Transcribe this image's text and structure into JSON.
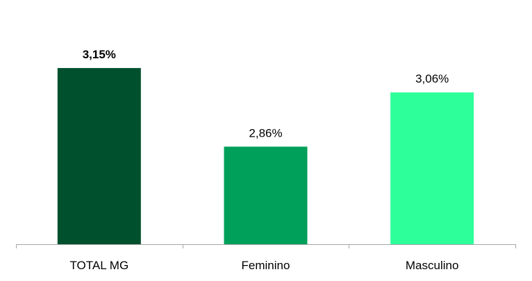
{
  "chart_data": {
    "type": "bar",
    "categories": [
      "TOTAL MG",
      "Feminino",
      "Masculino"
    ],
    "values": [
      3.15,
      2.86,
      3.06
    ],
    "value_labels": [
      "3,15%",
      "2,86%",
      "3,06%"
    ],
    "bold_labels": [
      true,
      false,
      false
    ],
    "colors": [
      "#00502d",
      "#00a05a",
      "#2dff9b"
    ],
    "axis_color": "#a6a6a6",
    "ylim": [
      2.5,
      3.25
    ],
    "grid": false,
    "legend": "none",
    "title": "",
    "xlabel": "",
    "ylabel": ""
  }
}
